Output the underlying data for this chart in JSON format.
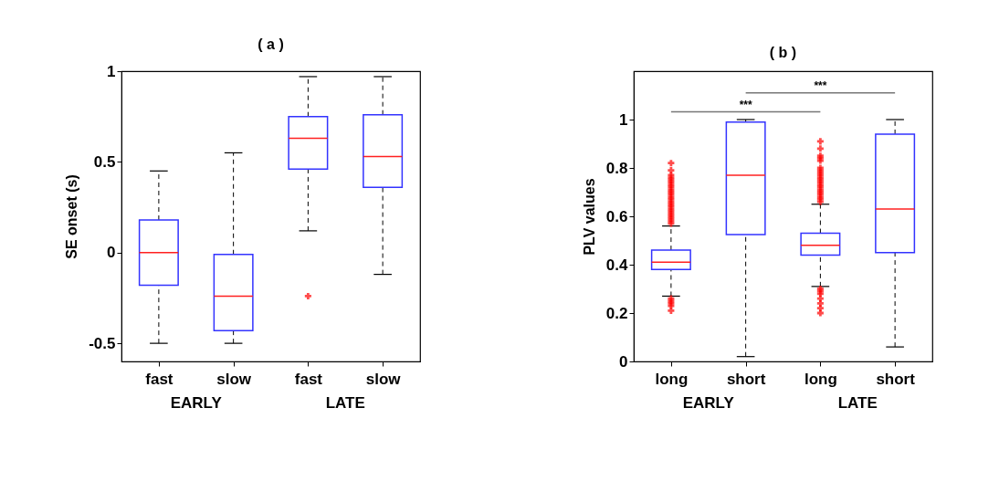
{
  "chart_data": [
    {
      "type": "box",
      "title": "( a )",
      "ylabel": "SE onset (s)",
      "categories": [
        "fast",
        "slow",
        "fast",
        "slow"
      ],
      "boxes": [
        {
          "low": -0.5,
          "q1": -0.18,
          "median": 0,
          "q3": 0.18,
          "high": 0.45
        },
        {
          "low": -0.5,
          "q1": -0.43,
          "median": -0.24,
          "q3": -0.01,
          "high": 0.55
        },
        {
          "low": 0.12,
          "q1": 0.46,
          "median": 0.63,
          "q3": 0.75,
          "high": 0.97,
          "outliers": [
            -0.24
          ]
        },
        {
          "low": -0.12,
          "q1": 0.36,
          "median": 0.53,
          "q3": 0.76,
          "high": 0.97
        }
      ],
      "ylim": [
        -0.6,
        1
      ],
      "yticks": [
        -0.5,
        0,
        0.5,
        1
      ],
      "grid": false,
      "marker": "cross",
      "annotations": [
        "EARLY",
        "LATE"
      ]
    },
    {
      "type": "box",
      "title": "( b )",
      "ylabel": "PLV values",
      "categories": [
        "long",
        "short",
        "long",
        "short"
      ],
      "boxes": [
        {
          "low": 0.27,
          "q1": 0.38,
          "median": 0.41,
          "q3": 0.46,
          "high": 0.56,
          "outliers": [
            0.57,
            0.58,
            0.59,
            0.6,
            0.61,
            0.62,
            0.63,
            0.64,
            0.65,
            0.66,
            0.67,
            0.68,
            0.69,
            0.7,
            0.71,
            0.72,
            0.73,
            0.74,
            0.75,
            0.76,
            0.77,
            0.79,
            0.82,
            0.21,
            0.23,
            0.24,
            0.25,
            0.26
          ]
        },
        {
          "low": 0.02,
          "q1": 0.525,
          "median": 0.77,
          "q3": 0.99,
          "high": 1.0
        },
        {
          "low": 0.31,
          "q1": 0.44,
          "median": 0.48,
          "q3": 0.53,
          "high": 0.65,
          "outliers": [
            0.66,
            0.67,
            0.68,
            0.69,
            0.7,
            0.71,
            0.72,
            0.73,
            0.74,
            0.75,
            0.76,
            0.77,
            0.78,
            0.79,
            0.8,
            0.83,
            0.84,
            0.85,
            0.88,
            0.91,
            0.2,
            0.22,
            0.24,
            0.26,
            0.28,
            0.29,
            0.3
          ]
        },
        {
          "low": 0.06,
          "q1": 0.45,
          "median": 0.63,
          "q3": 0.94,
          "high": 1.0
        }
      ],
      "ylim": [
        0,
        1.2
      ],
      "yticks": [
        0,
        0.2,
        0.4,
        0.6,
        0.8,
        1
      ],
      "grid": false,
      "marker": "cross",
      "annotations": [
        "EARLY",
        "LATE",
        "***",
        "***"
      ]
    }
  ]
}
